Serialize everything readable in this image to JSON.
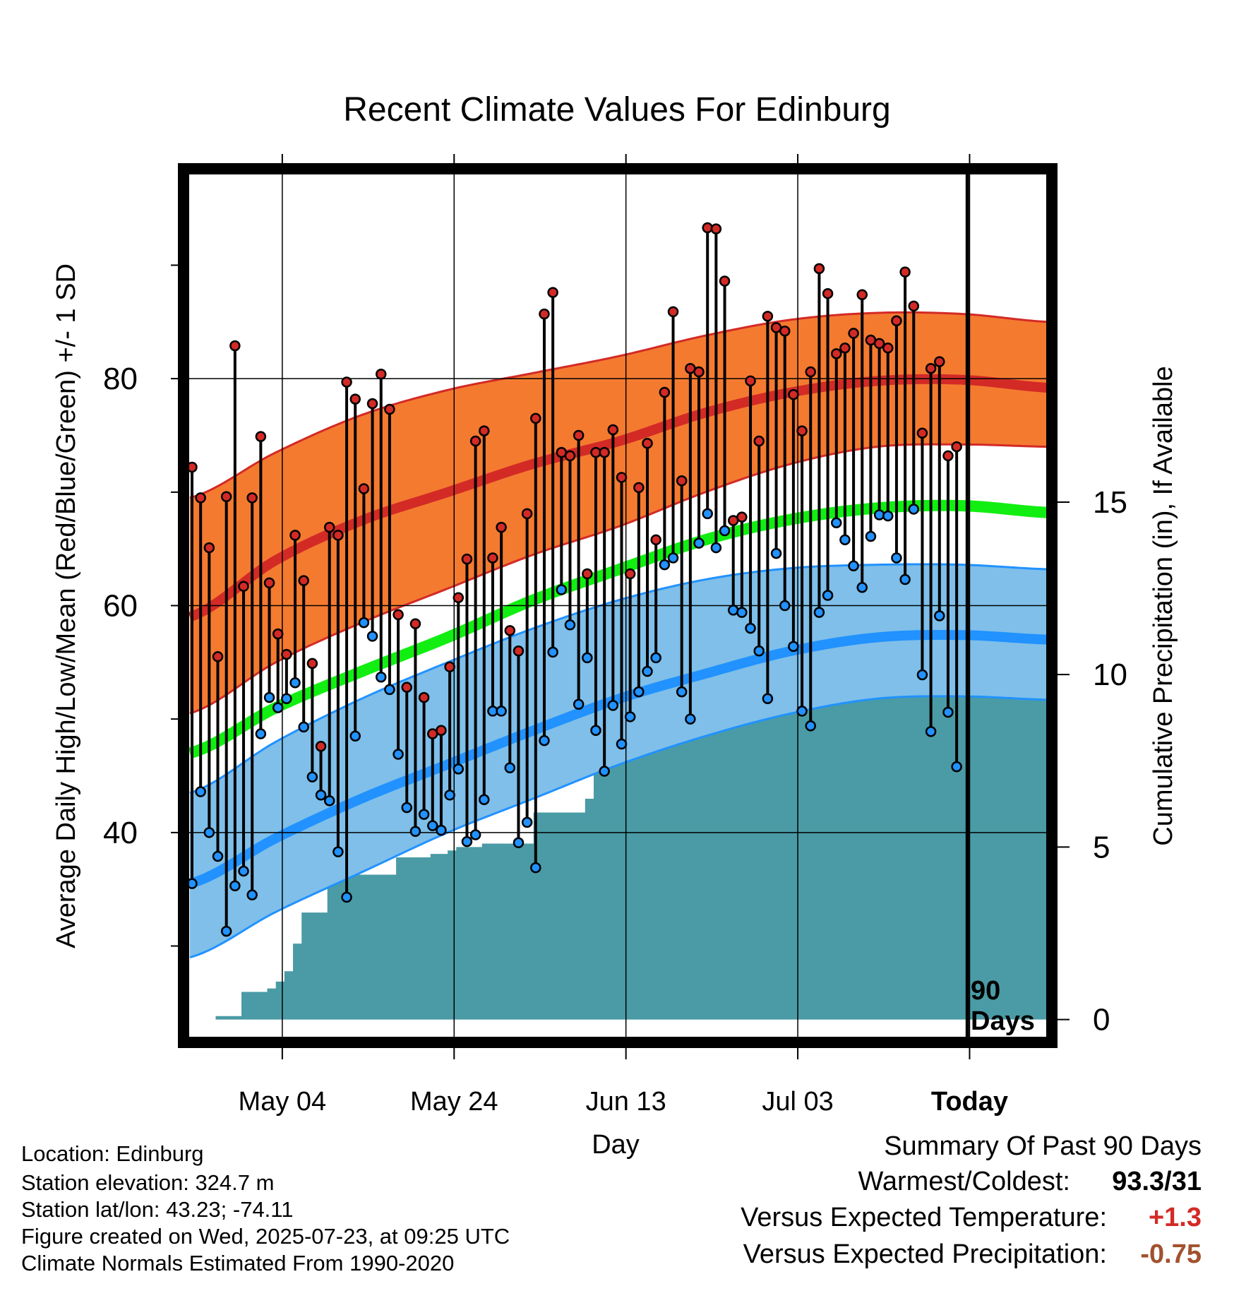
{
  "title": "Recent Climate Values For Edinburg",
  "chart_data": {
    "type": "line",
    "title": "Recent Climate Values For Edinburg",
    "xlabel": "Day",
    "ylabel_left": "Average Daily High/Low/Mean (Red/Blue/Green) +/- 1 SD",
    "ylabel_right": "Cumulative Precipitation (in), If Available",
    "x_start": "Apr 23",
    "x_end": "Aug 01",
    "today_day": 90,
    "today_label": "Today",
    "today_annotation": [
      "90",
      "Days"
    ],
    "temp_ylim": [
      22,
      98
    ],
    "temp_ticks": [
      40,
      60,
      80
    ],
    "precip_ylim": [
      -0.5,
      24.5
    ],
    "precip_ticks": [
      0,
      5,
      10,
      15
    ],
    "x_ticks": [
      {
        "day": 11,
        "label": "May 04"
      },
      {
        "day": 31,
        "label": "May 24"
      },
      {
        "day": 51,
        "label": "Jun 13"
      },
      {
        "day": 71,
        "label": "Jul 03"
      },
      {
        "day": 91,
        "label": "Today"
      }
    ],
    "grid": true,
    "normals": {
      "days": [
        0,
        10,
        20,
        30,
        40,
        50,
        60,
        70,
        80,
        90,
        100
      ],
      "high_mean": [
        59,
        64,
        67.5,
        70,
        72.5,
        74.5,
        77,
        78.8,
        79.8,
        79.9,
        79.2
      ],
      "high_upper": [
        69.5,
        73.5,
        76.8,
        79,
        80.5,
        82,
        83.8,
        85.2,
        85.8,
        85.7,
        85
      ],
      "high_lower": [
        50.5,
        55,
        58.5,
        61.5,
        64.5,
        67,
        70,
        72.5,
        74,
        74.2,
        74
      ],
      "mean": [
        47,
        51,
        54.2,
        57.2,
        60.5,
        63.2,
        65.8,
        67.6,
        68.6,
        68.8,
        68.2
      ],
      "low_mean": [
        35.5,
        39.5,
        43,
        46,
        49,
        51.8,
        54,
        56,
        57.2,
        57.4,
        57
      ],
      "low_upper": [
        43.5,
        48,
        51.8,
        55,
        58,
        60.5,
        62.3,
        63.3,
        63.6,
        63.6,
        63.2
      ],
      "low_lower": [
        29,
        33,
        36.5,
        40,
        43,
        46,
        48.5,
        50.5,
        51.8,
        52,
        51.7
      ]
    },
    "precip_cumulative": {
      "days": [
        0,
        1,
        2,
        3,
        4,
        5,
        6,
        7,
        8,
        9,
        10,
        11,
        12,
        13,
        14,
        15,
        16,
        17,
        18,
        19,
        20,
        21,
        22,
        23,
        24,
        25,
        26,
        27,
        28,
        29,
        30,
        31,
        32,
        33,
        34,
        35,
        36,
        37,
        38,
        39,
        40,
        41,
        42,
        43,
        44,
        45,
        46,
        47,
        48,
        49,
        50,
        51,
        52,
        53,
        54,
        55,
        56,
        57,
        58,
        59,
        60,
        61,
        62,
        63,
        64,
        65,
        66,
        67,
        68,
        69,
        70,
        71,
        72,
        73,
        74,
        75,
        76,
        77,
        78,
        79,
        80,
        81,
        82,
        83,
        84,
        85,
        86,
        87,
        88,
        89,
        90,
        91,
        92,
        93,
        94,
        95,
        96,
        97,
        98,
        99
      ],
      "values": [
        0,
        0,
        0,
        0.1,
        0.1,
        0.1,
        0.8,
        0.8,
        0.8,
        0.9,
        1.1,
        1.4,
        2.2,
        3.1,
        3.1,
        3.1,
        4.2,
        4.2,
        4.2,
        4.2,
        4.2,
        4.2,
        4.2,
        4.2,
        4.7,
        4.7,
        4.7,
        4.7,
        4.8,
        4.8,
        4.9,
        5,
        5,
        5,
        5.1,
        5.1,
        5.1,
        5.1,
        5.1,
        5.1,
        6,
        6,
        6,
        6,
        6,
        6,
        6.4,
        7.2,
        8,
        8.6,
        8.6,
        8.6,
        8.6,
        8.6,
        8.7,
        8.7,
        8.7,
        8.9,
        8.9,
        8.9,
        8.9,
        8.9,
        9,
        9,
        9,
        9,
        9,
        9.1,
        9.6,
        9.6,
        9.6,
        9.6,
        9.7,
        9.7,
        9.7,
        9.7,
        9.7,
        9.7,
        9.7,
        9.8,
        9.8,
        11.2,
        11.6,
        11.6,
        11.6,
        11.6,
        11.7,
        11.7,
        11.7,
        11.7,
        11.7,
        11.7,
        11.7,
        11.7,
        11.7,
        11.7,
        11.7,
        11.7,
        11.7,
        11.7
      ]
    },
    "daily_high": [
      72.2,
      69.5,
      65.1,
      55.5,
      69.6,
      82.9,
      61.7,
      69.5,
      74.9,
      62,
      57.5,
      55.7,
      66.2,
      62.2,
      54.9,
      47.6,
      66.9,
      66.2,
      79.7,
      78.2,
      70.3,
      77.8,
      80.4,
      77.3,
      59.2,
      52.8,
      58.4,
      51.9,
      48.7,
      49,
      54.6,
      60.7,
      64.1,
      74.5,
      75.4,
      64.2,
      66.9,
      57.8,
      56,
      68.1,
      76.5,
      85.7,
      87.6,
      73.5,
      73.2,
      75,
      62.8,
      73.5,
      73.5,
      75.5,
      71.3,
      62.8,
      70.4,
      74.3,
      65.8,
      78.8,
      85.9,
      71,
      80.9,
      80.6,
      93.3,
      93.2,
      88.6,
      67.5,
      67.8,
      79.8,
      74.5,
      85.5,
      84.5,
      84.2,
      78.6,
      75.4,
      80.6,
      89.7,
      87.5,
      82.2,
      82.7,
      84,
      87.4,
      83.4,
      83.1,
      82.7,
      85.1,
      89.4,
      86.4,
      75.2,
      80.9,
      81.5,
      73.2,
      74
    ],
    "daily_low": [
      35.5,
      43.6,
      40,
      37.9,
      31.3,
      35.3,
      36.6,
      34.5,
      48.7,
      51.9,
      51,
      51.8,
      53.2,
      49.3,
      44.9,
      43.3,
      42.8,
      38.3,
      34.3,
      48.5,
      58.5,
      57.3,
      53.7,
      52.6,
      46.9,
      42.2,
      40.1,
      41.6,
      40.6,
      40.2,
      43.3,
      45.6,
      39.2,
      39.8,
      42.9,
      50.7,
      50.7,
      45.7,
      39.1,
      40.9,
      36.9,
      48.1,
      55.9,
      61.4,
      58.3,
      51.3,
      55.4,
      49,
      45.4,
      51.2,
      47.8,
      50.2,
      52.4,
      54.2,
      55.4,
      63.6,
      64.2,
      52.4,
      50,
      65.5,
      68.1,
      65.1,
      66.6,
      59.6,
      59.4,
      58,
      56,
      51.8,
      64.6,
      60,
      56.4,
      50.7,
      49.4,
      59.4,
      60.9,
      67.3,
      65.8,
      63.5,
      61.6,
      66.1,
      68,
      67.9,
      64.2,
      62.3,
      68.5,
      53.9,
      48.9,
      59.1,
      50.6,
      45.8
    ],
    "colors": {
      "high_band": "#f47a30",
      "high_mean": "#d32a26",
      "mean": "#12ee12",
      "low_band": "#7fbfe9",
      "low_mean": "#2192ff",
      "precip": "#4a9ba5",
      "high_point": "#d32a26",
      "low_point": "#2192ff"
    }
  },
  "info": {
    "location": "Location: Edinburg",
    "elevation": "Station elevation: 324.7 m",
    "latlon": "Station lat/lon: 43.23; -74.11",
    "created": "Figure created on Wed, 2025-07-23, at 09:25 UTC",
    "normals": "Climate Normals Estimated From 1990-2020"
  },
  "summary": {
    "heading": "Summary Of Past 90 Days",
    "warm_cold_label": "Warmest/Coldest:",
    "warm_cold_value": "93.3/31",
    "temp_label": "Versus Expected Temperature:",
    "temp_value": "+1.3",
    "temp_color": "#d32a26",
    "precip_label": "Versus Expected Precipitation:",
    "precip_value": "-0.75",
    "precip_color": "#a0522d"
  }
}
